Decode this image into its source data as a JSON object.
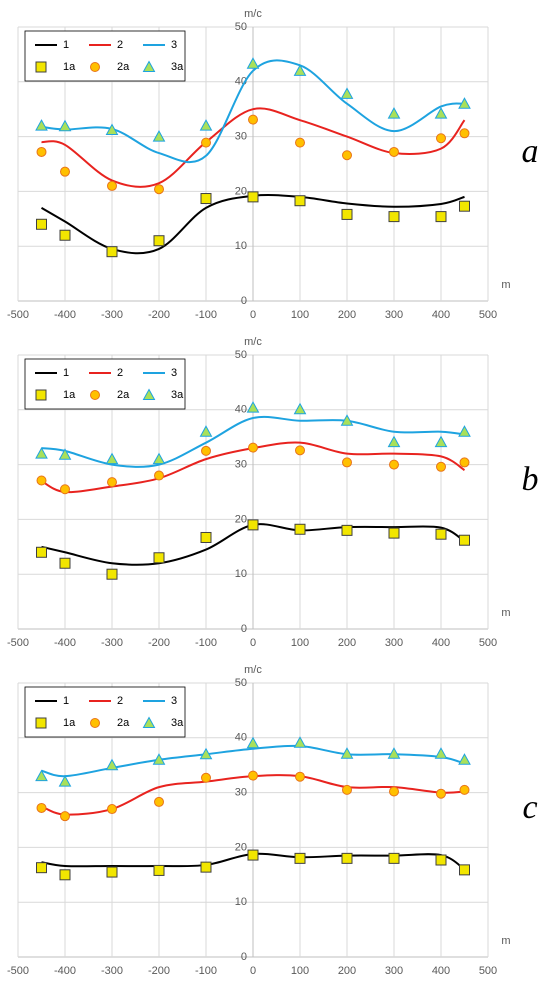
{
  "chart_data": [
    {
      "type": "line",
      "panel_label": "a",
      "y_label": "m/c",
      "x_label": "m",
      "x": [
        -450,
        -400,
        -300,
        -200,
        -100,
        0,
        100,
        200,
        300,
        400,
        450
      ],
      "xlim": [
        -500,
        500
      ],
      "xticks": [
        -500,
        -400,
        -300,
        -200,
        -100,
        0,
        100,
        200,
        300,
        400,
        500
      ],
      "ylim": [
        0,
        50
      ],
      "yticks": [
        0,
        10,
        20,
        30,
        40,
        50
      ],
      "grid": true,
      "legend": "upper left",
      "series": [
        {
          "name": "1",
          "color": "#000000",
          "style": "line",
          "values": [
            17,
            14.5,
            9.5,
            9.5,
            17,
            19.2,
            19,
            17.8,
            17.2,
            17.7,
            19
          ]
        },
        {
          "name": "2",
          "color": "#e8231f",
          "style": "line",
          "values": [
            29,
            28.5,
            22,
            21.5,
            29,
            35,
            33,
            30,
            27,
            27.8,
            33
          ]
        },
        {
          "name": "3",
          "color": "#1ea3e0",
          "style": "line",
          "values": [
            31.8,
            31.3,
            31.4,
            27,
            26.5,
            42,
            43,
            36,
            31,
            35.5,
            36
          ]
        },
        {
          "name": "1a",
          "color": "#f2e600",
          "style": "square",
          "values": [
            14,
            12,
            9,
            11,
            18.7,
            19,
            18.3,
            15.8,
            15.4,
            15.4,
            17.3
          ]
        },
        {
          "name": "2a",
          "color": "#ffc000",
          "style": "circle",
          "values": [
            27.2,
            23.6,
            21,
            20.4,
            28.9,
            33.1,
            28.9,
            26.6,
            27.2,
            29.7,
            30.6
          ]
        },
        {
          "name": "3a",
          "color": "#a9e05a",
          "style": "triangle",
          "values": [
            32,
            31.9,
            31.2,
            30,
            32,
            43.3,
            42,
            37.8,
            34.2,
            34.2,
            36
          ]
        }
      ]
    },
    {
      "type": "line",
      "panel_label": "b",
      "y_label": "m/c",
      "x_label": "m",
      "x": [
        -450,
        -400,
        -300,
        -200,
        -100,
        0,
        100,
        200,
        300,
        400,
        450
      ],
      "xlim": [
        -500,
        500
      ],
      "xticks": [
        -500,
        -400,
        -300,
        -200,
        -100,
        0,
        100,
        200,
        300,
        400,
        500
      ],
      "ylim": [
        0,
        50
      ],
      "yticks": [
        0,
        10,
        20,
        30,
        40,
        50
      ],
      "grid": true,
      "legend": "upper left",
      "series": [
        {
          "name": "1",
          "color": "#000000",
          "style": "line",
          "values": [
            15,
            14,
            12,
            12,
            14.5,
            19,
            18,
            18.6,
            18.6,
            18.5,
            16
          ]
        },
        {
          "name": "2",
          "color": "#e8231f",
          "style": "line",
          "values": [
            27,
            25,
            26,
            27.5,
            31,
            33,
            34,
            32,
            32,
            31.5,
            29
          ]
        },
        {
          "name": "3",
          "color": "#1ea3e0",
          "style": "line",
          "values": [
            33,
            32.5,
            30,
            30,
            34,
            38.5,
            38,
            38,
            36,
            36,
            35.5
          ]
        },
        {
          "name": "1a",
          "color": "#f2e600",
          "style": "square",
          "values": [
            14,
            12,
            10,
            13,
            16.7,
            19,
            18.2,
            18,
            17.5,
            17.3,
            16.2
          ]
        },
        {
          "name": "2a",
          "color": "#ffc000",
          "style": "circle",
          "values": [
            27.1,
            25.5,
            26.8,
            28,
            32.5,
            33.1,
            32.6,
            30.4,
            30,
            29.6,
            30.4
          ]
        },
        {
          "name": "3a",
          "color": "#a9e05a",
          "style": "triangle",
          "values": [
            32,
            31.8,
            31,
            31,
            36,
            40.4,
            40.1,
            38,
            34.1,
            34.1,
            36
          ]
        }
      ]
    },
    {
      "type": "line",
      "panel_label": "c",
      "y_label": "m/c",
      "x_label": "m",
      "x": [
        -450,
        -400,
        -300,
        -200,
        -100,
        0,
        100,
        200,
        300,
        400,
        450
      ],
      "xlim": [
        -500,
        500
      ],
      "xticks": [
        -500,
        -400,
        -300,
        -200,
        -100,
        0,
        100,
        200,
        300,
        400,
        500
      ],
      "ylim": [
        0,
        50
      ],
      "yticks": [
        0,
        10,
        20,
        30,
        40,
        50
      ],
      "grid": true,
      "legend": "upper left",
      "series": [
        {
          "name": "1",
          "color": "#000000",
          "style": "line",
          "values": [
            17.3,
            16.6,
            16.6,
            16.6,
            16.8,
            18.8,
            18.2,
            18.5,
            18.5,
            18.6,
            16
          ]
        },
        {
          "name": "2",
          "color": "#e8231f",
          "style": "line",
          "values": [
            27.5,
            26,
            27,
            31,
            32,
            33,
            33,
            31,
            31,
            30,
            30.2
          ]
        },
        {
          "name": "3",
          "color": "#1ea3e0",
          "style": "line",
          "values": [
            34,
            33,
            34.5,
            36,
            37,
            38,
            38.5,
            37,
            37,
            36.5,
            35.3
          ]
        },
        {
          "name": "1a",
          "color": "#f2e600",
          "style": "square",
          "values": [
            16.3,
            15,
            15.5,
            15.8,
            16.4,
            18.6,
            18,
            18,
            18,
            17.7,
            15.9
          ]
        },
        {
          "name": "2a",
          "color": "#ffc000",
          "style": "circle",
          "values": [
            27.2,
            25.7,
            27,
            28.3,
            32.7,
            33.1,
            32.9,
            30.5,
            30.2,
            29.8,
            30.5
          ]
        },
        {
          "name": "3a",
          "color": "#a9e05a",
          "style": "triangle",
          "values": [
            33,
            32,
            35,
            36,
            37,
            39,
            39.1,
            37.1,
            37.1,
            37.1,
            36
          ]
        }
      ]
    }
  ]
}
